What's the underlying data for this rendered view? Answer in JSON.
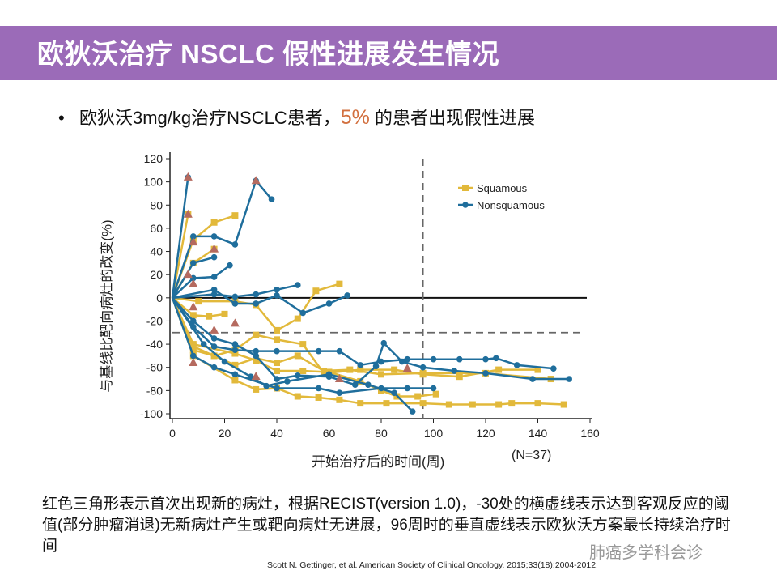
{
  "title": "欧狄沃治疗 NSCLC 假性进展发生情况",
  "bullet": {
    "prefix": "欧狄沃3mg/kg治疗NSCLC患者，",
    "highlight": "5%",
    "suffix": " 的患者出现假性进展"
  },
  "note": "红色三角形表示首次出现新的病灶，根据RECIST(version  1.0)，-30处的横虚线表示达到客观反应的阈值(部分肿瘤消退)无新病灶产生或靶向病灶无进展，96周时的垂直虚线表示欧狄沃方案最长持续治疗时间",
  "citation": "Scott N. Gettinger, et al. American Society of Clinical Oncology. 2015;33(18):2004-2012.",
  "watermark": "肺癌多学科会诊",
  "colors": {
    "banner": "#9b6bb8",
    "squamous": "#e2b93b",
    "nonsquamous": "#1f6e9c",
    "triangle": "#b56a5f",
    "highlight": "#d2703f"
  },
  "chart_data": {
    "type": "line",
    "xlabel": "开始治疗后的时间(周)",
    "ylabel": "与基线比靶向病灶的改变(%)",
    "n_label": "(N=37)",
    "xlim": [
      0,
      160
    ],
    "ylim": [
      -100,
      120
    ],
    "xticks": [
      "0",
      "20",
      "40",
      "60",
      "80",
      "100",
      "120",
      "140",
      "160"
    ],
    "yticks": [
      "120",
      "100",
      "80",
      "60",
      "40",
      "20",
      "0",
      "-20",
      "-40",
      "-60",
      "-80",
      "-100"
    ],
    "reference_lines": {
      "horizontal": [
        0,
        -30
      ],
      "vertical": [
        96
      ]
    },
    "legend": {
      "position": "top-right",
      "entries": [
        "Squamous",
        "Nonsquamous"
      ]
    },
    "series": [
      {
        "name": "Squamous",
        "points": [
          [
            0,
            0
          ],
          [
            6,
            72
          ]
        ]
      },
      {
        "name": "Squamous",
        "points": [
          [
            0,
            0
          ],
          [
            8,
            50
          ],
          [
            16,
            65
          ],
          [
            24,
            71
          ]
        ]
      },
      {
        "name": "Squamous",
        "points": [
          [
            0,
            0
          ],
          [
            8,
            30
          ],
          [
            16,
            42
          ]
        ]
      },
      {
        "name": "Squamous",
        "points": [
          [
            0,
            0
          ],
          [
            8,
            -15
          ],
          [
            14,
            -16
          ],
          [
            20,
            -14
          ]
        ]
      },
      {
        "name": "Squamous",
        "points": [
          [
            0,
            0
          ],
          [
            10,
            -3
          ],
          [
            24,
            -3
          ],
          [
            32,
            -6
          ],
          [
            40,
            -28
          ],
          [
            48,
            -18
          ],
          [
            55,
            6
          ],
          [
            64,
            12
          ]
        ]
      },
      {
        "name": "Squamous",
        "points": [
          [
            0,
            0
          ],
          [
            8,
            -45
          ],
          [
            16,
            -50
          ],
          [
            24,
            -45
          ],
          [
            32,
            -32
          ],
          [
            40,
            -36
          ],
          [
            50,
            -40
          ],
          [
            58,
            -65
          ],
          [
            72,
            -62
          ],
          [
            85,
            -62
          ],
          [
            96,
            -66
          ],
          [
            110,
            -68
          ],
          [
            125,
            -62
          ],
          [
            140,
            -62
          ]
        ]
      },
      {
        "name": "Squamous",
        "points": [
          [
            0,
            0
          ],
          [
            8,
            -42
          ],
          [
            24,
            -58
          ],
          [
            32,
            -52
          ],
          [
            40,
            -56
          ],
          [
            48,
            -50
          ],
          [
            58,
            -63
          ],
          [
            68,
            -62
          ],
          [
            80,
            -66
          ],
          [
            96,
            -65
          ],
          [
            120,
            -65
          ],
          [
            145,
            -70
          ]
        ]
      },
      {
        "name": "Squamous",
        "points": [
          [
            0,
            0
          ],
          [
            8,
            -50
          ],
          [
            24,
            -71
          ],
          [
            32,
            -79
          ],
          [
            40,
            -78
          ],
          [
            48,
            -85
          ],
          [
            56,
            -86
          ],
          [
            64,
            -88
          ],
          [
            72,
            -91
          ],
          [
            82,
            -91
          ],
          [
            96,
            -91
          ],
          [
            106,
            -92
          ],
          [
            115,
            -92
          ],
          [
            125,
            -92
          ],
          [
            130,
            -91
          ],
          [
            140,
            -91
          ],
          [
            150,
            -92
          ]
        ]
      },
      {
        "name": "Squamous",
        "points": [
          [
            0,
            0
          ],
          [
            8,
            -40
          ],
          [
            24,
            -48
          ],
          [
            32,
            -54
          ],
          [
            40,
            -63
          ],
          [
            50,
            -63
          ],
          [
            60,
            -64
          ],
          [
            72,
            -72
          ],
          [
            80,
            -80
          ],
          [
            86,
            -85
          ],
          [
            94,
            -85
          ],
          [
            101,
            -83
          ]
        ]
      },
      {
        "name": "Nonsquamous",
        "points": [
          [
            0,
            0
          ],
          [
            6,
            104
          ]
        ]
      },
      {
        "name": "Nonsquamous",
        "points": [
          [
            0,
            0
          ],
          [
            8,
            53
          ],
          [
            16,
            53
          ],
          [
            24,
            46
          ],
          [
            32,
            101
          ],
          [
            38,
            85
          ]
        ]
      },
      {
        "name": "Nonsquamous",
        "points": [
          [
            0,
            0
          ],
          [
            8,
            30
          ],
          [
            16,
            35
          ]
        ]
      },
      {
        "name": "Nonsquamous",
        "points": [
          [
            0,
            0
          ],
          [
            8,
            17
          ],
          [
            16,
            18
          ],
          [
            22,
            28
          ]
        ]
      },
      {
        "name": "Nonsquamous",
        "points": [
          [
            0,
            0
          ],
          [
            16,
            3
          ],
          [
            24,
            1
          ],
          [
            32,
            3
          ],
          [
            40,
            7
          ],
          [
            48,
            11
          ]
        ]
      },
      {
        "name": "Nonsquamous",
        "points": [
          [
            0,
            0
          ],
          [
            16,
            7
          ],
          [
            24,
            -5
          ],
          [
            32,
            -5
          ],
          [
            40,
            2
          ],
          [
            50,
            -13
          ],
          [
            60,
            -5
          ],
          [
            67,
            2
          ]
        ]
      },
      {
        "name": "Nonsquamous",
        "points": [
          [
            0,
            0
          ],
          [
            8,
            -50
          ],
          [
            16,
            -60
          ],
          [
            24,
            -66
          ],
          [
            40,
            -78
          ],
          [
            56,
            -78
          ],
          [
            64,
            -82
          ],
          [
            80,
            -78
          ],
          [
            90,
            -78
          ],
          [
            100,
            -78
          ]
        ]
      },
      {
        "name": "Nonsquamous",
        "points": [
          [
            0,
            0
          ],
          [
            8,
            -25
          ],
          [
            16,
            -42
          ],
          [
            24,
            -45
          ],
          [
            32,
            -46
          ],
          [
            40,
            -46
          ],
          [
            56,
            -46
          ],
          [
            64,
            -46
          ],
          [
            72,
            -58
          ],
          [
            80,
            -55
          ],
          [
            90,
            -53
          ],
          [
            100,
            -53
          ],
          [
            110,
            -53
          ],
          [
            120,
            -53
          ],
          [
            124,
            -52
          ],
          [
            132,
            -58
          ],
          [
            146,
            -61
          ]
        ]
      },
      {
        "name": "Nonsquamous",
        "points": [
          [
            0,
            0
          ],
          [
            8,
            -20
          ],
          [
            16,
            -35
          ],
          [
            24,
            -40
          ],
          [
            32,
            -50
          ],
          [
            40,
            -70
          ],
          [
            48,
            -67
          ],
          [
            60,
            -68
          ],
          [
            70,
            -75
          ],
          [
            78,
            -59
          ],
          [
            81,
            -39
          ],
          [
            88,
            -55
          ],
          [
            96,
            -60
          ],
          [
            108,
            -63
          ],
          [
            120,
            -65
          ],
          [
            138,
            -70
          ],
          [
            152,
            -70
          ]
        ]
      },
      {
        "name": "Nonsquamous",
        "points": [
          [
            0,
            0
          ],
          [
            12,
            -40
          ],
          [
            20,
            -55
          ],
          [
            30,
            -68
          ],
          [
            36,
            -76
          ],
          [
            44,
            -72
          ],
          [
            60,
            -66
          ],
          [
            75,
            -75
          ],
          [
            85,
            -82
          ],
          [
            92,
            -98
          ]
        ]
      }
    ],
    "new_lesion_triangles": [
      [
        6,
        104
      ],
      [
        6,
        72
      ],
      [
        8,
        48
      ],
      [
        16,
        42
      ],
      [
        6,
        20
      ],
      [
        8,
        12
      ],
      [
        8,
        -8
      ],
      [
        24,
        -22
      ],
      [
        16,
        -28
      ],
      [
        8,
        -56
      ],
      [
        32,
        -68
      ],
      [
        32,
        101
      ],
      [
        64,
        -70
      ],
      [
        90,
        -61
      ]
    ]
  }
}
